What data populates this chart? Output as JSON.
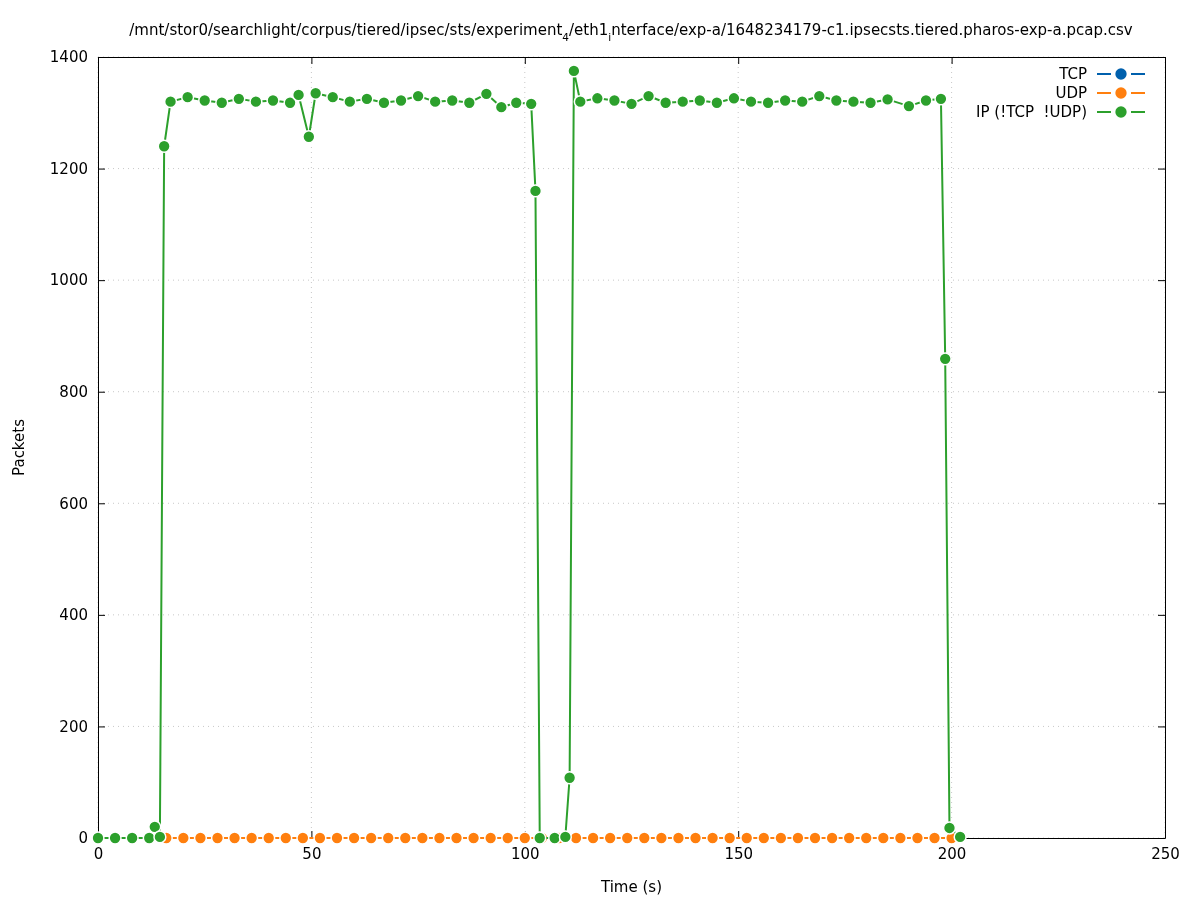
{
  "chart_data": {
    "type": "line",
    "title": "/mnt/stor0/searchlight/corpus/tiered/ipsec/sts/experiment$_{4}$/eth1$_{i}$nterface/exp-a/1648234179-c1.ipsecsts.tiered.pharos-exp-a.pcap.csv",
    "xlabel": "Time (s)",
    "ylabel": "Packets",
    "xlim": [
      0,
      250
    ],
    "xticks": [
      0,
      50,
      100,
      150,
      200,
      250
    ],
    "ylim": [
      0,
      1400
    ],
    "yticks": [
      0,
      200,
      400,
      600,
      800,
      1000,
      1200,
      1400
    ],
    "grid": true,
    "legend": "top right",
    "marker": "circle",
    "line_style": "solid",
    "series": [
      {
        "name": "TCP",
        "color": "#0060ad"
      },
      {
        "name": "UDP",
        "color": "#ff7f0e",
        "x": [
          12,
          16,
          20,
          24,
          28,
          32,
          36,
          40,
          44,
          48,
          52,
          56,
          60,
          64,
          68,
          72,
          76,
          80,
          84,
          88,
          92,
          96,
          100,
          104,
          108,
          112,
          116,
          120,
          124,
          128,
          132,
          136,
          140,
          144,
          148,
          152,
          156,
          160,
          164,
          168,
          172,
          176,
          180,
          184,
          188,
          192,
          196,
          200
        ],
        "values": [
          0,
          0,
          0,
          0,
          0,
          0,
          0,
          0,
          0,
          0,
          0,
          0,
          0,
          0,
          0,
          0,
          0,
          0,
          0,
          0,
          0,
          0,
          0,
          0,
          0,
          0,
          0,
          0,
          0,
          0,
          0,
          0,
          0,
          0,
          0,
          0,
          0,
          0,
          0,
          0,
          0,
          0,
          0,
          0,
          0,
          0,
          0,
          0
        ]
      },
      {
        "name": "IP (!TCP  !UDP)",
        "color": "#2ca02c",
        "x": [
          0,
          4,
          8,
          12,
          13.3,
          14.5,
          15.5,
          17,
          21,
          25,
          29,
          33,
          37,
          41,
          45,
          47,
          49.4,
          51,
          55,
          59,
          63,
          67,
          71,
          75,
          79,
          83,
          87,
          91,
          94.5,
          98,
          101.5,
          102.5,
          103.5,
          107,
          109.5,
          110.5,
          111.5,
          113,
          117,
          121,
          125,
          129,
          133,
          137,
          141,
          145,
          149,
          153,
          157,
          161,
          165,
          169,
          173,
          177,
          181,
          185,
          190,
          194,
          197.5,
          198.5,
          199.5,
          202
        ],
        "values": [
          0,
          0,
          0,
          0,
          20,
          2,
          1240,
          1320,
          1328,
          1322,
          1318,
          1325,
          1320,
          1322,
          1318,
          1332,
          1257,
          1335,
          1328,
          1320,
          1325,
          1318,
          1322,
          1330,
          1320,
          1322,
          1318,
          1334,
          1310,
          1318,
          1316,
          1160,
          0,
          0,
          2,
          108,
          1375,
          1320,
          1326,
          1322,
          1316,
          1330,
          1318,
          1320,
          1322,
          1318,
          1326,
          1320,
          1318,
          1322,
          1320,
          1330,
          1322,
          1320,
          1318,
          1324,
          1312,
          1322,
          1325,
          859,
          18,
          2
        ]
      }
    ]
  }
}
